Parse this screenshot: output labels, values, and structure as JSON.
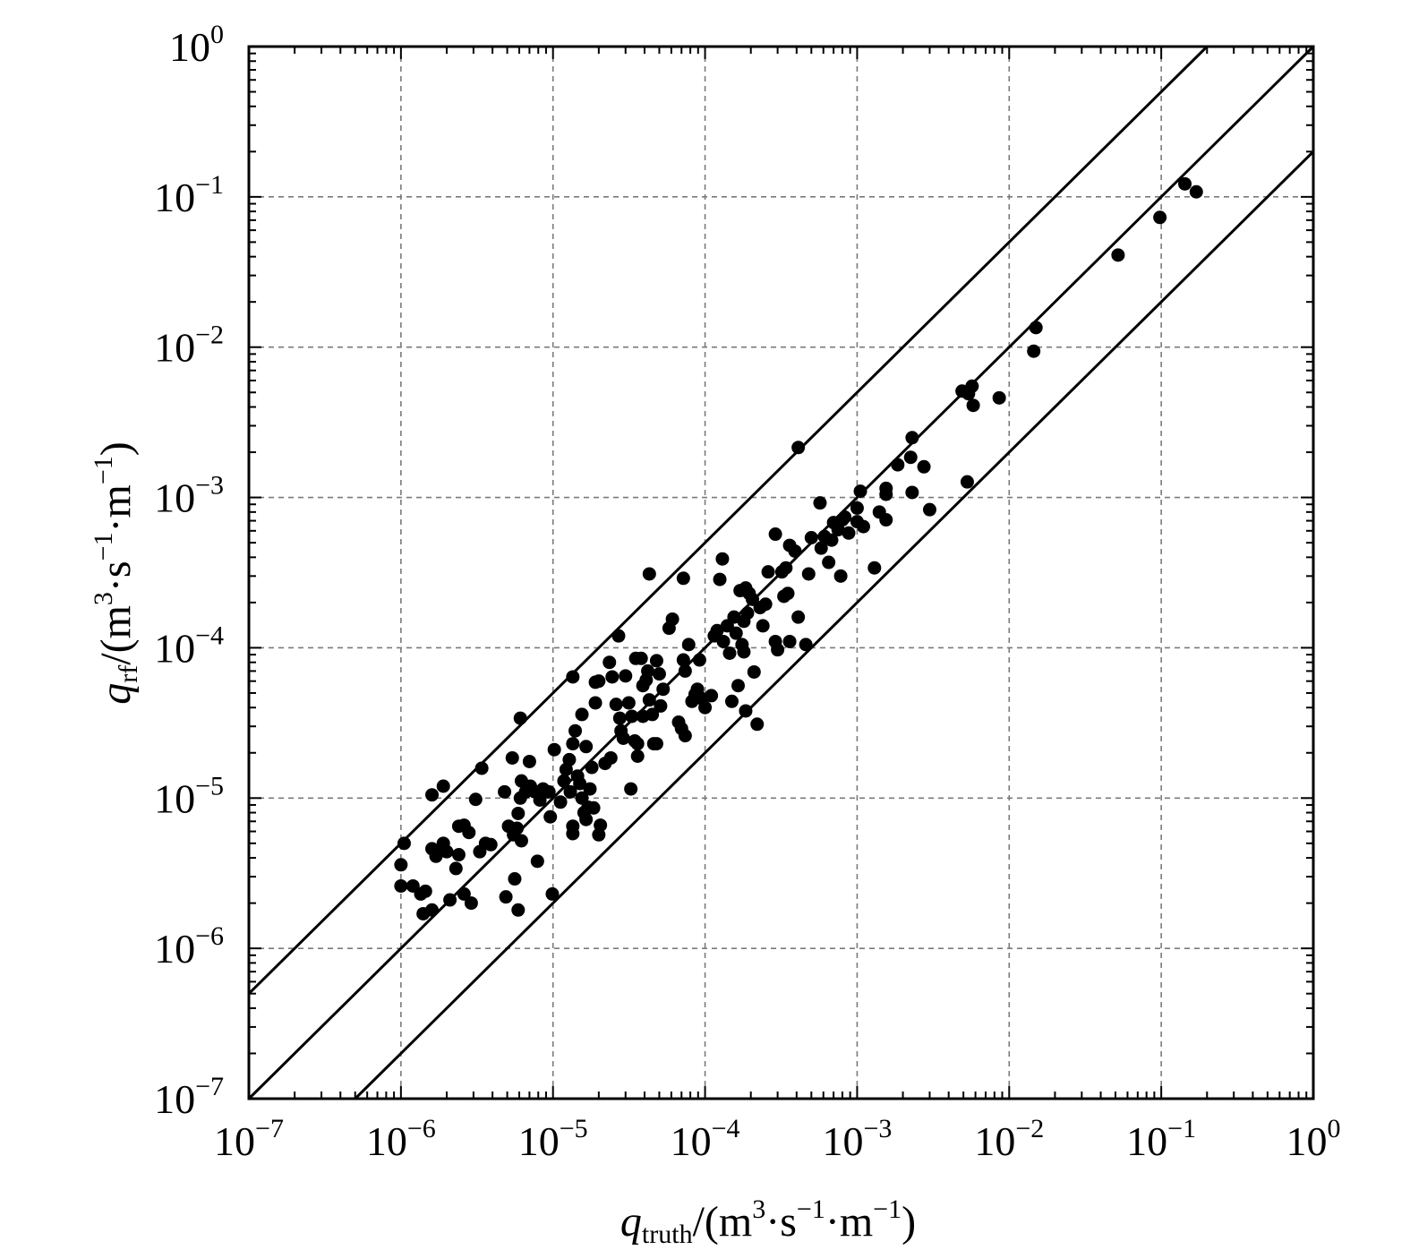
{
  "chart_data": {
    "type": "scatter",
    "xscale": "log",
    "yscale": "log",
    "xlim": [
      1e-07,
      1
    ],
    "ylim": [
      1e-07,
      1
    ],
    "grid": true,
    "x_axis_label": {
      "symbol": "q",
      "subscript": "truth",
      "unit_prefix": "/(m",
      "unit_sup1": "3",
      "unit_mid": "·s",
      "unit_sup2": "−1",
      "unit_mid2": "·m",
      "unit_sup3": "−1",
      "unit_suffix": ")"
    },
    "y_axis_label": {
      "symbol": "q",
      "subscript": "rf",
      "unit_prefix": "/(m",
      "unit_sup1": "3",
      "unit_mid": "·s",
      "unit_sup2": "−1",
      "unit_mid2": "·m",
      "unit_sup3": "−1",
      "unit_suffix": ")"
    },
    "x_ticks": [
      {
        "value": 1e-07,
        "base": "10",
        "exp": "−7"
      },
      {
        "value": 1e-06,
        "base": "10",
        "exp": "−6"
      },
      {
        "value": 1e-05,
        "base": "10",
        "exp": "−5"
      },
      {
        "value": 0.0001,
        "base": "10",
        "exp": "−4"
      },
      {
        "value": 0.001,
        "base": "10",
        "exp": "−3"
      },
      {
        "value": 0.01,
        "base": "10",
        "exp": "−2"
      },
      {
        "value": 0.1,
        "base": "10",
        "exp": "−1"
      },
      {
        "value": 1,
        "base": "10",
        "exp": "0"
      }
    ],
    "y_ticks": [
      {
        "value": 1e-07,
        "base": "10",
        "exp": "−7"
      },
      {
        "value": 1e-06,
        "base": "10",
        "exp": "−6"
      },
      {
        "value": 1e-05,
        "base": "10",
        "exp": "−5"
      },
      {
        "value": 0.0001,
        "base": "10",
        "exp": "−4"
      },
      {
        "value": 0.001,
        "base": "10",
        "exp": "−3"
      },
      {
        "value": 0.01,
        "base": "10",
        "exp": "−2"
      },
      {
        "value": 0.1,
        "base": "10",
        "exp": "−1"
      },
      {
        "value": 1,
        "base": "10",
        "exp": "0"
      }
    ],
    "reference_lines": [
      {
        "factor": 5
      },
      {
        "factor": 1
      },
      {
        "factor": 0.2
      }
    ],
    "series": [
      {
        "points": [
          [
            1e-06,
            2.6e-06
          ],
          [
            1e-06,
            3.6e-06
          ],
          [
            1.05e-06,
            5e-06
          ],
          [
            1.2e-06,
            2.6e-06
          ],
          [
            1.35e-06,
            2.3e-06
          ],
          [
            1.45e-06,
            2.4e-06
          ],
          [
            1.4e-06,
            1.7e-06
          ],
          [
            1.6e-06,
            1.8e-06
          ],
          [
            1.6e-06,
            4.6e-06
          ],
          [
            1.7e-06,
            4.1e-06
          ],
          [
            1.8e-06,
            4.5e-06
          ],
          [
            1.9e-06,
            5e-06
          ],
          [
            2e-06,
            4.4e-06
          ],
          [
            2.1e-06,
            2.1e-06
          ],
          [
            2.3e-06,
            3.4e-06
          ],
          [
            2.4e-06,
            4.2e-06
          ],
          [
            1.6e-06,
            1.05e-05
          ],
          [
            1.9e-06,
            1.2e-05
          ],
          [
            2.4e-06,
            6.5e-06
          ],
          [
            2.6e-06,
            6.6e-06
          ],
          [
            2.8e-06,
            5.9e-06
          ],
          [
            2.6e-06,
            2.3e-06
          ],
          [
            2.9e-06,
            2e-06
          ],
          [
            3.1e-06,
            9.8e-06
          ],
          [
            3.3e-06,
            4.4e-06
          ],
          [
            3.6e-06,
            5e-06
          ],
          [
            3.9e-06,
            4.9e-06
          ],
          [
            3.4e-06,
            1.58e-05
          ],
          [
            4.8e-06,
            1.1e-05
          ],
          [
            5.1e-06,
            6.5e-06
          ],
          [
            5.5e-06,
            5.7e-06
          ],
          [
            5.8e-06,
            6.3e-06
          ],
          [
            6.2e-06,
            5.2e-06
          ],
          [
            5.4e-06,
            1.85e-05
          ],
          [
            5.6e-06,
            2.9e-06
          ],
          [
            4.9e-06,
            2.2e-06
          ],
          [
            5.9e-06,
            1.8e-06
          ],
          [
            5.9e-06,
            7.9e-06
          ],
          [
            6.1e-06,
            1e-05
          ],
          [
            6.2e-06,
            1.3e-05
          ],
          [
            6.6e-06,
            1.1e-05
          ],
          [
            7.1e-06,
            1.2e-05
          ],
          [
            7.6e-06,
            1.1e-05
          ],
          [
            8.2e-06,
            9.7e-06
          ],
          [
            8.6e-06,
            1.15e-05
          ],
          [
            9.4e-06,
            1.1e-05
          ],
          [
            7e-06,
            1.75e-05
          ],
          [
            6.1e-06,
            3.4e-05
          ],
          [
            7.9e-06,
            3.8e-06
          ],
          [
            9.6e-06,
            7.5e-06
          ],
          [
            9.9e-06,
            2.3e-06
          ],
          [
            1.02e-05,
            2.1e-05
          ],
          [
            1.12e-05,
            9.4e-06
          ],
          [
            1.18e-05,
            1.3e-05
          ],
          [
            1.22e-05,
            1.55e-05
          ],
          [
            1.28e-05,
            1.8e-05
          ],
          [
            1.3e-05,
            1.1e-05
          ],
          [
            1.35e-05,
            2.3e-05
          ],
          [
            1.4e-05,
            2.8e-05
          ],
          [
            1.45e-05,
            1.4e-05
          ],
          [
            1.5e-05,
            1.25e-05
          ],
          [
            1.55e-05,
            1e-05
          ],
          [
            1.6e-05,
            8e-06
          ],
          [
            1.65e-05,
            7.2e-06
          ],
          [
            1.7e-05,
            8.7e-06
          ],
          [
            1.75e-05,
            1.15e-05
          ],
          [
            1.8e-05,
            1.6e-05
          ],
          [
            1.85e-05,
            8.6e-06
          ],
          [
            1.55e-05,
            3.6e-05
          ],
          [
            1.65e-05,
            2.2e-05
          ],
          [
            1.35e-05,
            6.5e-06
          ],
          [
            1.35e-05,
            5.8e-06
          ],
          [
            1.9e-05,
            4.3e-05
          ],
          [
            1.9e-05,
            5.9e-05
          ],
          [
            2e-05,
            5.7e-06
          ],
          [
            2.05e-05,
            6.6e-06
          ],
          [
            1.35e-05,
            6.4e-05
          ],
          [
            2e-05,
            6e-05
          ],
          [
            2.2e-05,
            1.7e-05
          ],
          [
            2.4e-05,
            1.85e-05
          ],
          [
            2.35e-05,
            8e-05
          ],
          [
            2.45e-05,
            6.4e-05
          ],
          [
            2.6e-05,
            4.2e-05
          ],
          [
            2.75e-05,
            3.4e-05
          ],
          [
            2.8e-05,
            2.8e-05
          ],
          [
            2.9e-05,
            2.5e-05
          ],
          [
            3e-05,
            6.5e-05
          ],
          [
            3.15e-05,
            4.3e-05
          ],
          [
            3.3e-05,
            3.5e-05
          ],
          [
            3.45e-05,
            2.4e-05
          ],
          [
            3.6e-05,
            1.9e-05
          ],
          [
            3.25e-05,
            1.15e-05
          ],
          [
            3.5e-05,
            8.5e-05
          ],
          [
            3.8e-05,
            8.5e-05
          ],
          [
            3.9e-05,
            5.6e-05
          ],
          [
            4.1e-05,
            6.1e-05
          ],
          [
            4.3e-05,
            4.5e-05
          ],
          [
            4.5e-05,
            3.6e-05
          ],
          [
            4.6e-05,
            2.3e-05
          ],
          [
            4.2e-05,
            7e-05
          ],
          [
            2.7e-05,
            0.00012
          ],
          [
            4.3e-05,
            0.00031
          ],
          [
            4.8e-05,
            8.2e-05
          ],
          [
            5e-05,
            6.7e-05
          ],
          [
            5.1e-05,
            4.1e-05
          ],
          [
            5.3e-05,
            5.3e-05
          ],
          [
            4.8e-05,
            2.3e-05
          ],
          [
            3.6e-05,
            2.3e-05
          ],
          [
            3.9e-05,
            3.5e-05
          ],
          [
            5.8e-05,
            0.000135
          ],
          [
            6.1e-05,
            0.000155
          ],
          [
            6.7e-05,
            3.2e-05
          ],
          [
            7e-05,
            2.9e-05
          ],
          [
            7.4e-05,
            2.6e-05
          ],
          [
            7.4e-05,
            7e-05
          ],
          [
            7.2e-05,
            8.3e-05
          ],
          [
            7.8e-05,
            0.000105
          ],
          [
            8.2e-05,
            4.4e-05
          ],
          [
            8.6e-05,
            4.9e-05
          ],
          [
            8.9e-05,
            5.3e-05
          ],
          [
            9.2e-05,
            8.3e-05
          ],
          [
            9.5e-05,
            4.6e-05
          ],
          [
            7.2e-05,
            0.00029
          ],
          [
            0.0001,
            4e-05
          ],
          [
            0.00011,
            4.8e-05
          ],
          [
            0.000115,
            0.00012
          ],
          [
            0.00012,
            0.00013
          ],
          [
            0.000125,
            0.000285
          ],
          [
            0.00013,
            0.00039
          ],
          [
            0.000132,
            0.00011
          ],
          [
            0.00014,
            0.00014
          ],
          [
            0.000145,
            9.2e-05
          ],
          [
            0.00015,
            4.4e-05
          ],
          [
            0.000155,
            0.00016
          ],
          [
            0.00016,
            0.000125
          ],
          [
            0.00017,
            0.00024
          ],
          [
            0.000175,
            0.000105
          ],
          [
            0.00018,
            0.00015
          ],
          [
            0.000185,
            0.00025
          ],
          [
            0.00019,
            0.00017
          ],
          [
            0.000195,
            0.00023
          ],
          [
            0.000205,
            0.00021
          ],
          [
            0.00021,
            6.9e-05
          ],
          [
            0.00022,
            3.1e-05
          ],
          [
            0.00018,
            9.4e-05
          ],
          [
            0.000165,
            5.6e-05
          ],
          [
            0.000185,
            3.8e-05
          ],
          [
            0.00023,
            0.000185
          ],
          [
            0.00025,
            0.000195
          ],
          [
            0.00024,
            0.00014
          ],
          [
            0.00026,
            0.00032
          ],
          [
            0.00029,
            0.00057
          ],
          [
            0.00029,
            0.00011
          ],
          [
            0.0003,
            9.7e-05
          ],
          [
            0.00032,
            0.00032
          ],
          [
            0.00034,
            0.00034
          ],
          [
            0.00033,
            0.00022
          ],
          [
            0.00035,
            0.00023
          ],
          [
            0.00036,
            0.00048
          ],
          [
            0.00039,
            0.00044
          ],
          [
            0.00041,
            0.00016
          ],
          [
            0.00036,
            0.00011
          ],
          [
            0.00046,
            0.000105
          ],
          [
            0.00048,
            0.00031
          ],
          [
            0.0005,
            0.00054
          ],
          [
            0.00057,
            0.00092
          ],
          [
            0.00058,
            0.00046
          ],
          [
            0.00061,
            0.00055
          ],
          [
            0.00065,
            0.00037
          ],
          [
            0.00068,
            0.00052
          ],
          [
            0.0007,
            0.00068
          ],
          [
            0.00075,
            0.00061
          ],
          [
            0.00078,
            0.0003
          ],
          [
            0.0008,
            0.00071
          ],
          [
            0.00083,
            0.00074
          ],
          [
            0.00088,
            0.00058
          ],
          [
            0.001,
            0.00069
          ],
          [
            0.00105,
            0.0011
          ],
          [
            0.001,
            0.00085
          ],
          [
            0.0011,
            0.00064
          ],
          [
            0.0013,
            0.00034
          ],
          [
            0.0014,
            0.0008
          ],
          [
            0.00155,
            0.00071
          ],
          [
            0.00155,
            0.00105
          ],
          [
            0.00155,
            0.00115
          ],
          [
            0.00185,
            0.00165
          ],
          [
            0.00225,
            0.00185
          ],
          [
            0.0023,
            0.00108
          ],
          [
            0.0023,
            0.0025
          ],
          [
            0.00275,
            0.0016
          ],
          [
            0.003,
            0.00083
          ],
          [
            0.00041,
            0.00215
          ],
          [
            0.0049,
            0.0051
          ],
          [
            0.0053,
            0.00127
          ],
          [
            0.0054,
            0.0049
          ],
          [
            0.0057,
            0.0055
          ],
          [
            0.0058,
            0.0041
          ],
          [
            0.0086,
            0.0046
          ],
          [
            0.0145,
            0.0094
          ],
          [
            0.015,
            0.0135
          ],
          [
            0.052,
            0.041
          ],
          [
            0.098,
            0.073
          ],
          [
            0.143,
            0.122
          ],
          [
            0.17,
            0.108
          ]
        ]
      }
    ]
  }
}
